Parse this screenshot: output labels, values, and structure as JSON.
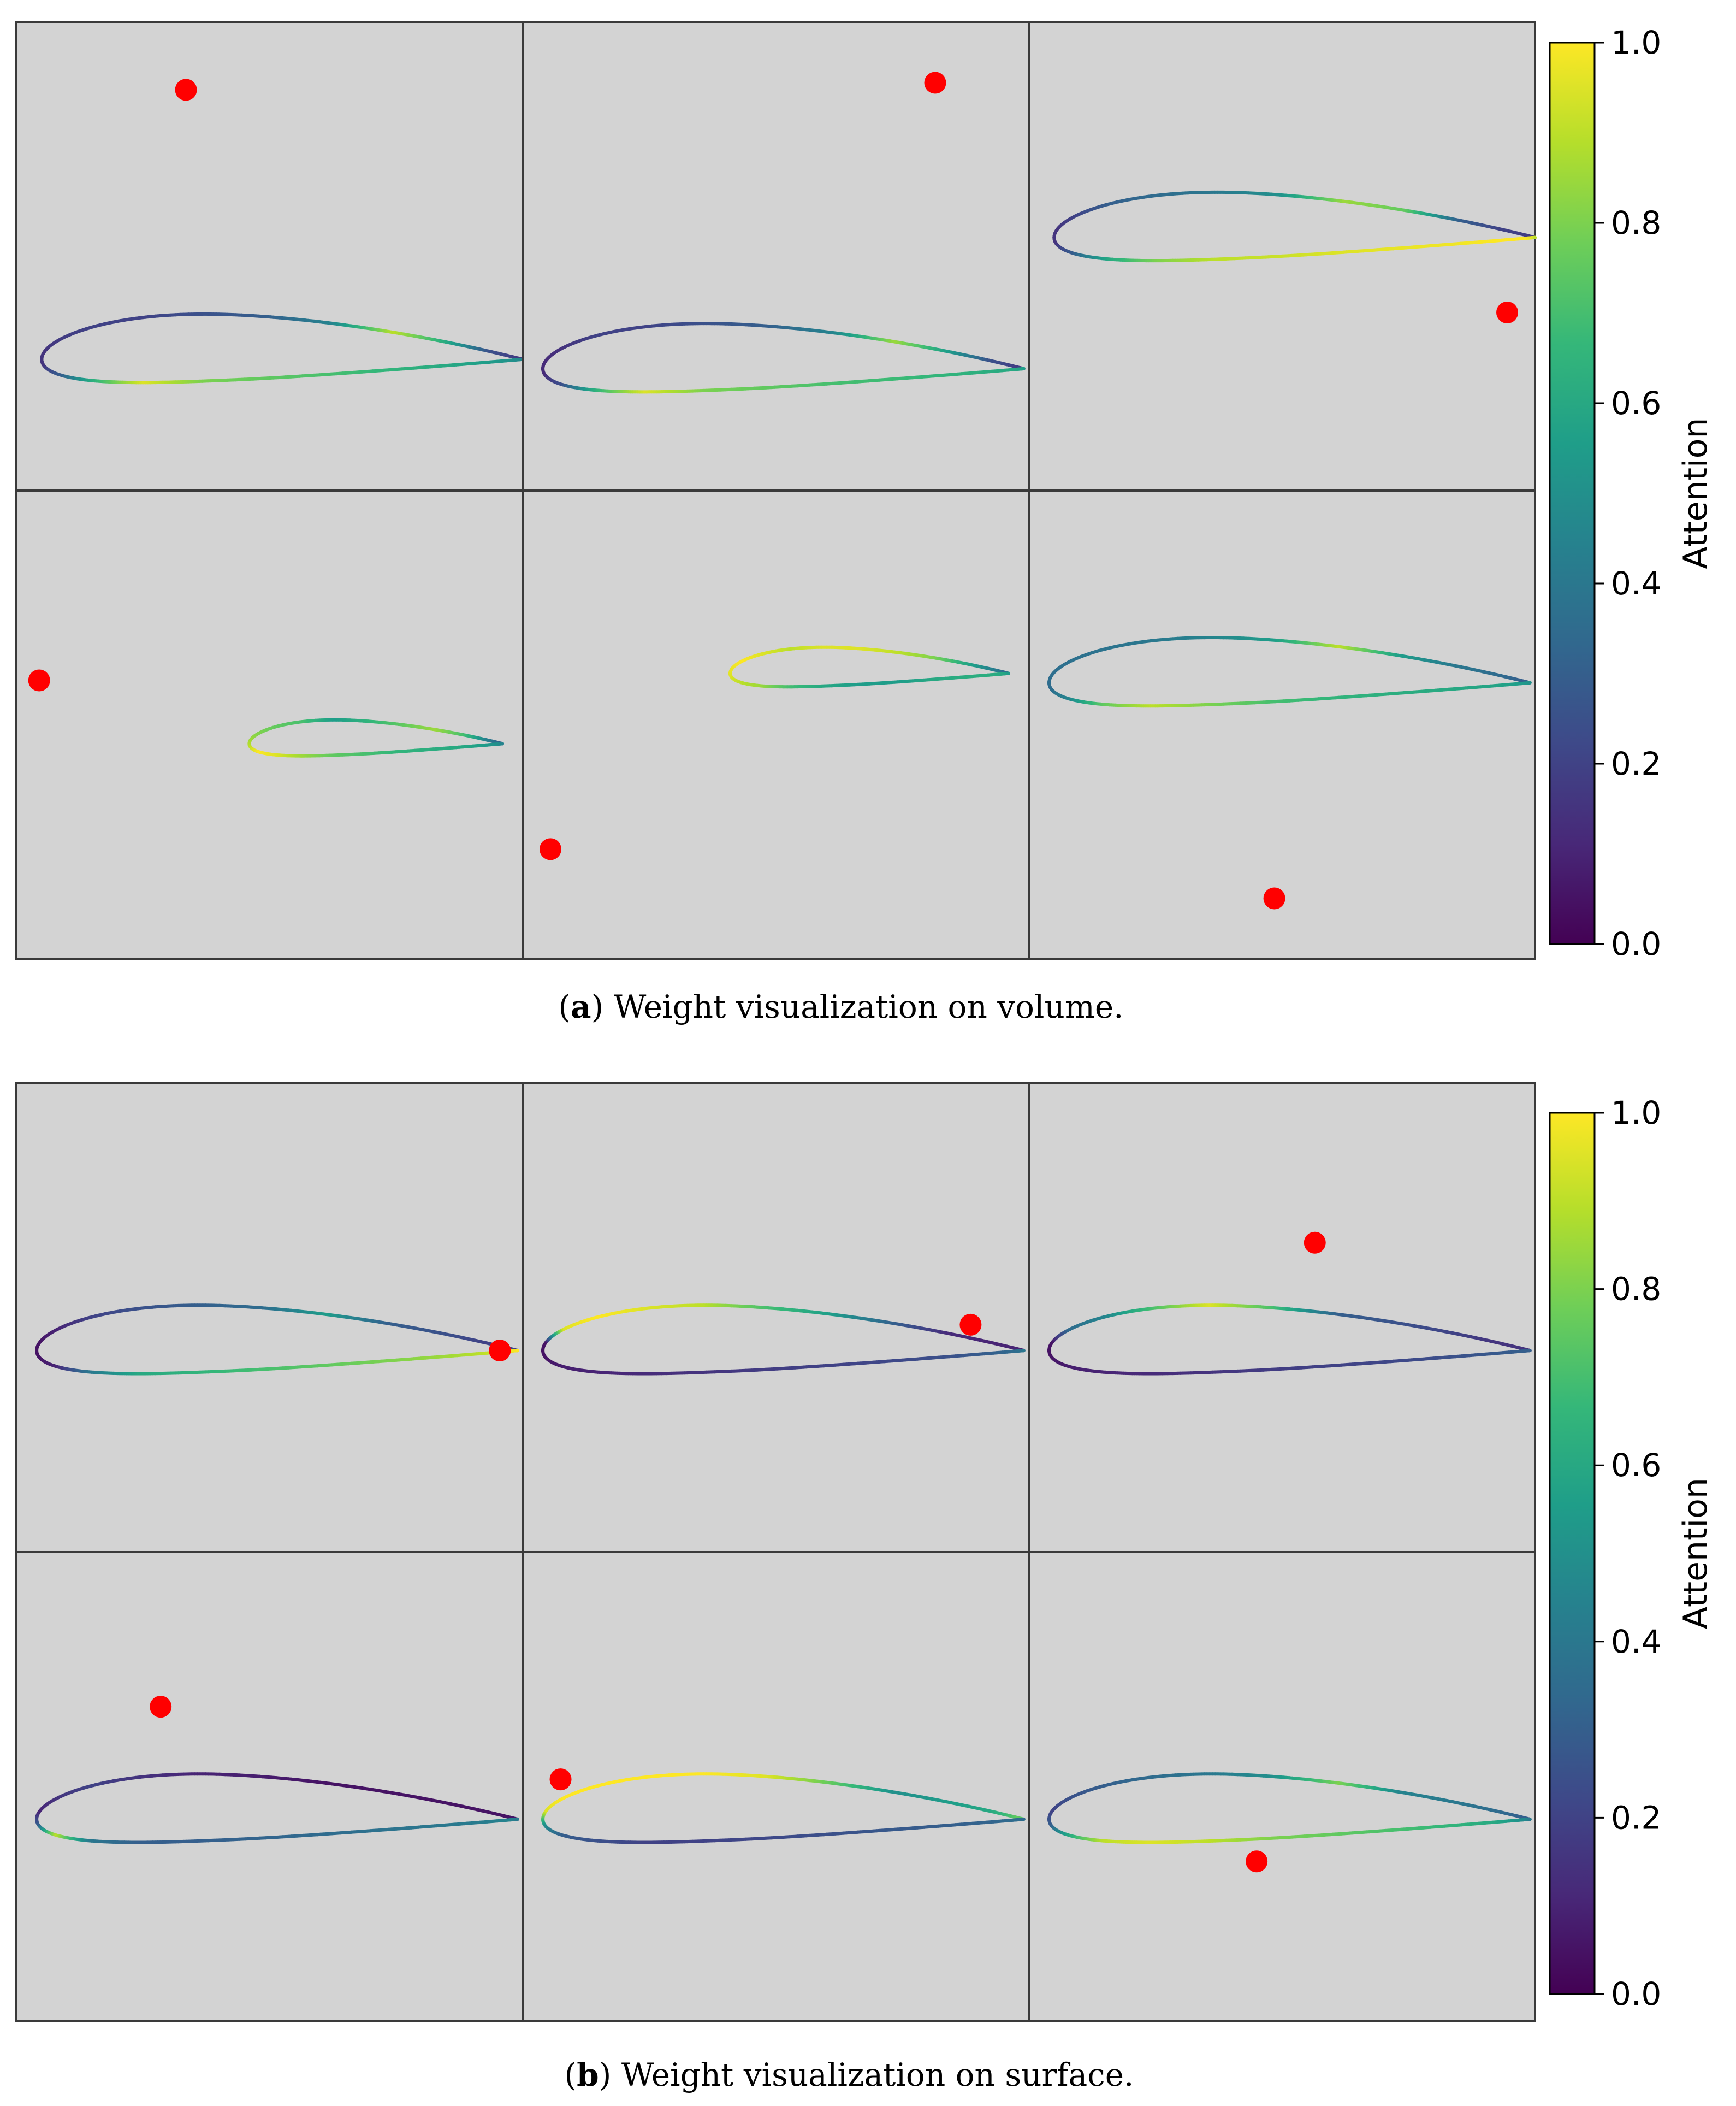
{
  "figure": {
    "panels": [
      {
        "id": "a",
        "caption_label": "a",
        "caption_text": "Weight visualization on volume."
      },
      {
        "id": "b",
        "caption_label": "b",
        "caption_text": "Weight visualization on surface."
      }
    ]
  },
  "colors": {
    "background": "#d3d3d3",
    "marker": "#ff0000",
    "viridis": [
      "#440154",
      "#482878",
      "#3e4989",
      "#31688e",
      "#26828e",
      "#1f9e89",
      "#35b779",
      "#6ece58",
      "#b5de2b",
      "#fde725"
    ]
  },
  "chart_data": [
    {
      "type": "scatter",
      "title": "Weight visualization on volume.",
      "colorbar": {
        "label": "Attention",
        "range": [
          0,
          1
        ],
        "ticks": [
          0.0,
          0.2,
          0.4,
          0.6,
          0.8,
          1.0
        ],
        "tick_labels": [
          "0.0",
          "0.2",
          "0.4",
          "0.6",
          "0.8",
          "1.0"
        ]
      },
      "subplots": [
        {
          "name": "a1",
          "airfoil_scale": 1.0,
          "marker": {
            "x": 0.335,
            "y": 0.145
          },
          "profile": [
            0.15,
            0.18,
            0.25,
            0.6,
            0.9,
            0.45,
            0.3,
            0.25,
            0.2,
            0.2,
            0.18,
            0.15,
            0.15,
            0.3,
            0.65,
            0.95,
            0.8,
            0.75,
            0.7,
            0.65,
            0.6,
            0.55,
            0.5,
            0.45
          ]
        },
        {
          "name": "a2",
          "airfoil_scale": 1.0,
          "marker": {
            "x": 0.815,
            "y": 0.13
          },
          "profile": [
            0.15,
            0.18,
            0.25,
            0.55,
            0.85,
            0.45,
            0.3,
            0.25,
            0.2,
            0.2,
            0.15,
            0.12,
            0.12,
            0.25,
            0.65,
            0.95,
            0.8,
            0.75,
            0.7,
            0.68,
            0.65,
            0.62,
            0.6,
            0.55
          ]
        },
        {
          "name": "a3",
          "airfoil_scale": 1.0,
          "marker": {
            "x": 0.945,
            "y": 0.62
          },
          "profile": [
            0.15,
            0.18,
            0.2,
            0.3,
            0.75,
            0.85,
            0.5,
            0.4,
            0.35,
            0.3,
            0.2,
            0.15,
            0.15,
            0.3,
            0.6,
            0.8,
            0.9,
            0.92,
            0.95,
            0.97,
            0.98,
            1.0,
            1.0,
            0.9
          ]
        },
        {
          "name": "a4",
          "airfoil_scale": 1.0,
          "marker": {
            "x": 0.045,
            "y": 0.405
          },
          "profile": [
            0.3,
            0.3,
            0.45,
            0.7,
            0.85,
            0.75,
            0.65,
            0.55,
            0.7,
            0.75,
            0.8,
            0.85,
            0.9,
            1.0,
            0.95,
            0.85,
            0.75,
            0.7,
            0.65,
            0.62,
            0.6,
            0.55,
            0.5,
            0.45
          ]
        },
        {
          "name": "a5",
          "airfoil_scale": 1.0,
          "marker": {
            "x": 0.055,
            "y": 0.765
          },
          "profile": [
            0.3,
            0.35,
            0.45,
            0.6,
            0.8,
            0.9,
            0.95,
            0.95,
            0.9,
            0.95,
            1.0,
            0.97,
            0.95,
            0.9,
            0.85,
            0.7,
            0.6,
            0.55,
            0.55,
            0.6,
            0.62,
            0.62,
            0.6,
            0.55
          ]
        },
        {
          "name": "a6",
          "airfoil_scale": 1.0,
          "marker": {
            "x": 0.485,
            "y": 0.87
          },
          "profile": [
            0.3,
            0.3,
            0.35,
            0.4,
            0.55,
            0.9,
            0.55,
            0.45,
            0.4,
            0.38,
            0.37,
            0.36,
            0.35,
            0.45,
            0.75,
            0.9,
            0.8,
            0.7,
            0.65,
            0.62,
            0.6,
            0.58,
            0.55,
            0.5
          ]
        }
      ]
    },
    {
      "type": "scatter",
      "title": "Weight visualization on surface.",
      "colorbar": {
        "label": "Attention",
        "range": [
          0,
          1
        ],
        "ticks": [
          0.0,
          0.2,
          0.4,
          0.6,
          0.8,
          1.0
        ],
        "tick_labels": [
          "0.0",
          "0.2",
          "0.4",
          "0.6",
          "0.8",
          "1.0"
        ]
      },
      "subplots": [
        {
          "name": "b1",
          "airfoil_scale": 1.0,
          "marker": {
            "x": 0.955,
            "y": 0.57
          },
          "profile": [
            0.2,
            0.2,
            0.2,
            0.25,
            0.3,
            0.55,
            0.35,
            0.3,
            0.25,
            0.2,
            0.1,
            0.05,
            0.05,
            0.1,
            0.4,
            0.6,
            0.65,
            0.7,
            0.75,
            0.8,
            0.85,
            0.9,
            0.97,
            1.0
          ]
        },
        {
          "name": "b2",
          "airfoil_scale": 1.0,
          "marker": {
            "x": 0.885,
            "y": 0.515
          },
          "profile": [
            0.1,
            0.1,
            0.1,
            0.12,
            0.3,
            0.55,
            0.7,
            0.9,
            0.95,
            1.0,
            0.95,
            0.05,
            0.05,
            0.08,
            0.1,
            0.12,
            0.15,
            0.18,
            0.2,
            0.22,
            0.25,
            0.3,
            0.35,
            0.4
          ]
        },
        {
          "name": "b3",
          "airfoil_scale": 1.0,
          "marker": {
            "x": 0.565,
            "y": 0.34
          },
          "profile": [
            0.15,
            0.15,
            0.15,
            0.2,
            0.25,
            0.3,
            0.7,
            0.95,
            0.7,
            0.45,
            0.35,
            0.05,
            0.05,
            0.08,
            0.1,
            0.12,
            0.15,
            0.18,
            0.2,
            0.22,
            0.25,
            0.28,
            0.3,
            0.3
          ]
        },
        {
          "name": "b4",
          "airfoil_scale": 1.0,
          "marker": {
            "x": 0.285,
            "y": 0.33
          },
          "profile": [
            0.1,
            0.05,
            0.05,
            0.05,
            0.05,
            0.05,
            0.08,
            0.1,
            0.15,
            0.2,
            0.15,
            0.1,
            0.3,
            0.9,
            0.4,
            0.3,
            0.3,
            0.32,
            0.35,
            0.38,
            0.4,
            0.42,
            0.45,
            0.4
          ]
        },
        {
          "name": "b5",
          "airfoil_scale": 1.0,
          "marker": {
            "x": 0.075,
            "y": 0.485
          },
          "profile": [
            0.7,
            0.75,
            0.6,
            0.55,
            0.5,
            0.75,
            0.95,
            1.0,
            1.0,
            1.0,
            1.0,
            0.95,
            0.5,
            0.3,
            0.25,
            0.2,
            0.2,
            0.22,
            0.25,
            0.28,
            0.3,
            0.32,
            0.35,
            0.35
          ]
        },
        {
          "name": "b6",
          "airfoil_scale": 1.0,
          "marker": {
            "x": 0.45,
            "y": 0.66
          },
          "profile": [
            0.3,
            0.3,
            0.35,
            0.4,
            0.45,
            0.8,
            0.5,
            0.4,
            0.35,
            0.3,
            0.25,
            0.2,
            0.3,
            0.6,
            0.9,
            0.95,
            0.9,
            0.8,
            0.75,
            0.7,
            0.65,
            0.6,
            0.5,
            0.4
          ]
        }
      ]
    }
  ]
}
